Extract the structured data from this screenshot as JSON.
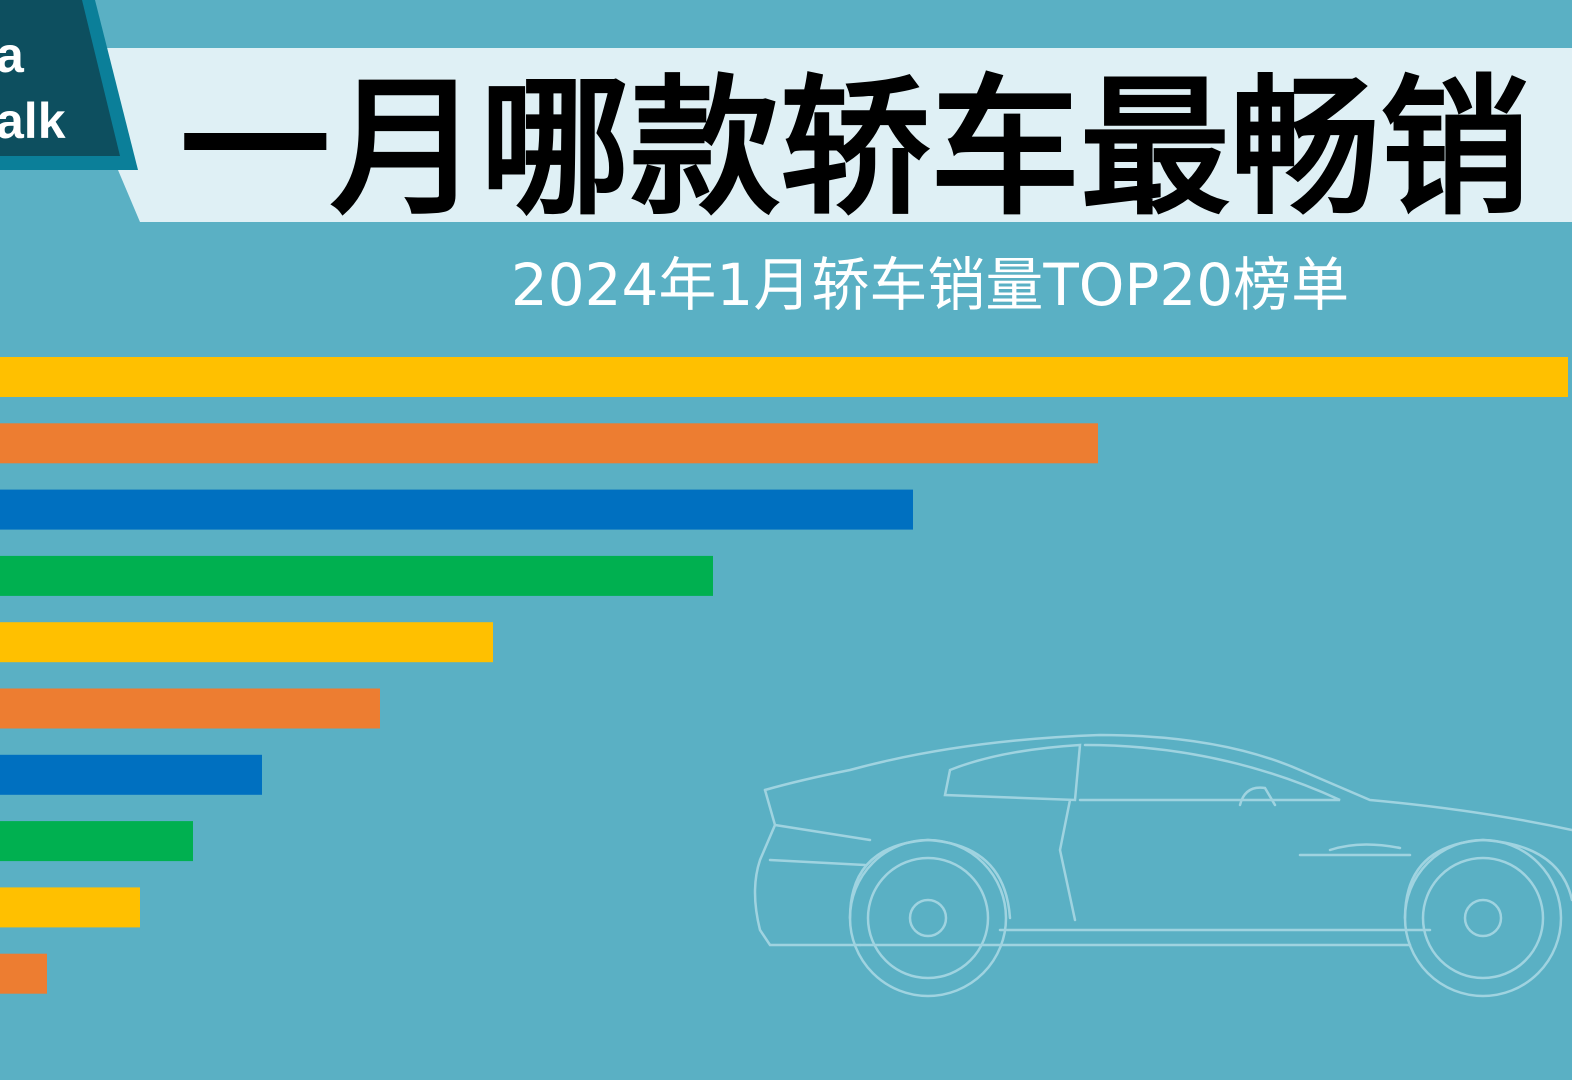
{
  "logo": {
    "lines": [
      "a",
      "alk"
    ]
  },
  "chart_data": {
    "type": "bar",
    "orientation": "horizontal",
    "title": "一月哪款轿车最畅销",
    "subtitle": "2024年1月轿车销量TOP20榜单",
    "categories": [
      null,
      null,
      null,
      null,
      null,
      null,
      null,
      null,
      null,
      null
    ],
    "values": [
      1568,
      1098,
      913,
      713,
      493,
      380,
      262,
      193,
      140,
      47
    ],
    "colors": [
      "#ffc000",
      "#ed7d31",
      "#0070c0",
      "#00b050",
      "#ffc000",
      "#ed7d31",
      "#0070c0",
      "#00b050",
      "#ffc000",
      "#ed7d31"
    ],
    "xlim": [
      0,
      1568
    ]
  }
}
